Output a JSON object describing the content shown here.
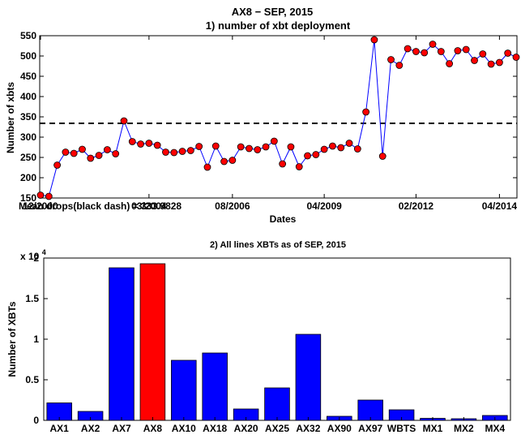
{
  "figure": {
    "title": "AX8 − SEP, 2015",
    "colors": {
      "point_fill": "#ff0000",
      "line": "#0000ff",
      "bar": "#0000ff",
      "bar_highlight": "#ff0000",
      "mean_line": "#000000"
    }
  },
  "chart_data": [
    {
      "type": "line",
      "title": "1) number of xbt deployment",
      "xlabel": "Dates",
      "ylabel": "Number of xbts",
      "ylim": [
        150,
        550
      ],
      "y_ticks": [
        "150",
        "200",
        "250",
        "300",
        "350",
        "400",
        "450",
        "500",
        "550"
      ],
      "x_tick_labels": [
        "12/2000",
        "03/2004",
        "08/2006",
        "04/2009",
        "02/2012",
        "04/2014"
      ],
      "x_tick_index": [
        0,
        13,
        23,
        34,
        45,
        55
      ],
      "grid": false,
      "mean": 333.9828,
      "annotation": "Mean drops(black dash) = 333.9828",
      "series": [
        {
          "values": [
            157,
            154,
            231,
            263,
            260,
            270,
            248,
            255,
            269,
            259,
            340,
            289,
            283,
            285,
            280,
            263,
            262,
            265,
            267,
            277,
            226,
            278,
            240,
            243,
            276,
            272,
            269,
            276,
            290,
            234,
            276,
            227,
            254,
            257,
            270,
            278,
            274,
            285,
            271,
            362,
            540,
            253,
            491,
            477,
            518,
            511,
            508,
            529,
            511,
            481,
            513,
            516,
            489,
            505,
            480,
            484,
            507,
            497
          ]
        }
      ]
    },
    {
      "type": "bar",
      "title": "2) All lines XBTs as of SEP, 2015",
      "xlabel": "",
      "ylabel": "Number of XBTs",
      "ylim": [
        0,
        20000
      ],
      "y_ticks": [
        "0",
        "0.5",
        "1",
        "1.5",
        "2"
      ],
      "y_multiplier_base": "x 10",
      "y_multiplier_exp": "4",
      "highlight": "AX8",
      "categories": [
        "AX1",
        "AX2",
        "AX7",
        "AX8",
        "AX10",
        "AX18",
        "AX20",
        "AX25",
        "AX32",
        "AX90",
        "AX97",
        "WBTS",
        "MX1",
        "MX2",
        "MX4"
      ],
      "values": [
        2150,
        1100,
        18800,
        19300,
        7400,
        8300,
        1400,
        4000,
        10600,
        500,
        2500,
        1300,
        250,
        200,
        600
      ]
    }
  ]
}
